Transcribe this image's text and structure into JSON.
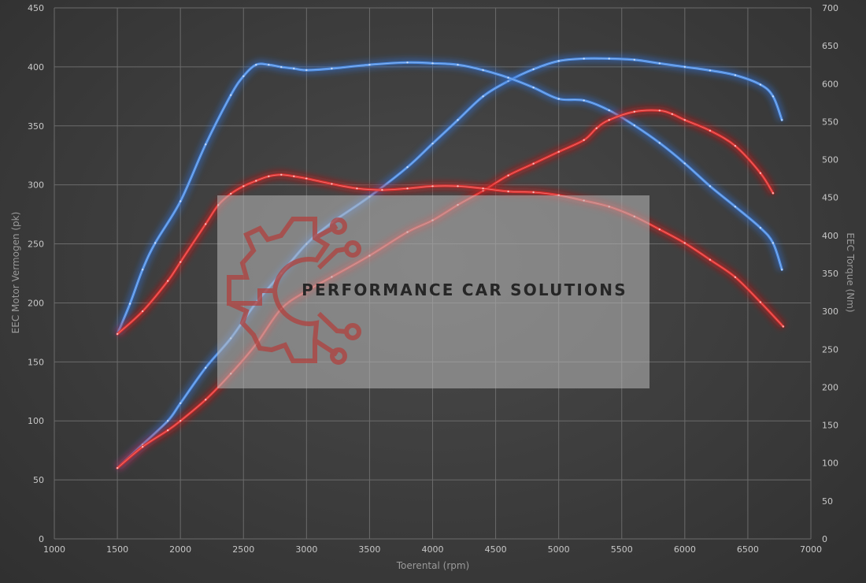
{
  "watermark": {
    "brand_text": "PERFORMANCE CAR SOLUTIONS",
    "logo_icon": "gear-circuit-icon",
    "logo_color": "#b0413e"
  },
  "chart_data": {
    "type": "line",
    "xlabel": "Toerental (rpm)",
    "ylabel_left": "EEC Motor Vermogen (pk)",
    "ylabel_right": "EEC Torque (Nm)",
    "xlim": [
      1000,
      7000
    ],
    "ylim_left": [
      0,
      450
    ],
    "ylim_right": [
      0,
      700
    ],
    "x_ticks": [
      1000,
      1500,
      2000,
      2500,
      3000,
      3500,
      4000,
      4500,
      5000,
      5500,
      6000,
      6500,
      7000
    ],
    "y_ticks_left": [
      0,
      50,
      100,
      150,
      200,
      250,
      300,
      350,
      400,
      450
    ],
    "y_ticks_right": [
      0,
      50,
      100,
      150,
      200,
      250,
      300,
      350,
      400,
      450,
      500,
      550,
      600,
      650,
      700
    ],
    "grid": true,
    "colors": {
      "blue": "#4f8fe6",
      "red": "#e0302e",
      "blue_glow": "#2f6fd0",
      "red_glow": "#d01818"
    },
    "series": [
      {
        "color": "blue",
        "axis": "left",
        "kind": "power",
        "x": [
          1500,
          1700,
          1900,
          2000,
          2200,
          2400,
          2600,
          2800,
          3000,
          3200,
          3500,
          3800,
          4000,
          4200,
          4400,
          4600,
          4800,
          5000,
          5200,
          5400,
          5600,
          5800,
          6000,
          6200,
          6400,
          6600,
          6700,
          6770
        ],
        "y": [
          60,
          80,
          100,
          115,
          145,
          170,
          200,
          225,
          250,
          268,
          290,
          315,
          335,
          355,
          375,
          388,
          398,
          405,
          407,
          407,
          406,
          403,
          400,
          397,
          393,
          385,
          375,
          355
        ]
      },
      {
        "color": "blue",
        "axis": "right",
        "kind": "torque",
        "x": [
          1500,
          1600,
          1700,
          1800,
          2000,
          2200,
          2400,
          2500,
          2600,
          2700,
          2800,
          2900,
          3000,
          3200,
          3500,
          3800,
          4000,
          4200,
          4400,
          4600,
          4800,
          5000,
          5200,
          5400,
          5600,
          5800,
          6000,
          6200,
          6400,
          6600,
          6700,
          6770
        ],
        "y": [
          270,
          310,
          355,
          390,
          445,
          520,
          585,
          610,
          625,
          625,
          622,
          620,
          618,
          620,
          625,
          628,
          627,
          625,
          618,
          608,
          595,
          580,
          578,
          565,
          545,
          522,
          495,
          465,
          438,
          410,
          390,
          355
        ]
      },
      {
        "color": "red",
        "axis": "left",
        "kind": "power",
        "x": [
          1500,
          1700,
          1900,
          2000,
          2200,
          2400,
          2600,
          2800,
          3000,
          3200,
          3500,
          3800,
          4000,
          4200,
          4400,
          4600,
          4800,
          5000,
          5200,
          5300,
          5400,
          5600,
          5800,
          5900,
          6000,
          6200,
          6400,
          6600,
          6700
        ],
        "y": [
          60,
          78,
          92,
          100,
          118,
          140,
          165,
          195,
          210,
          222,
          240,
          260,
          270,
          283,
          295,
          308,
          318,
          328,
          338,
          348,
          355,
          362,
          363,
          360,
          355,
          346,
          333,
          310,
          293
        ]
      },
      {
        "color": "red",
        "axis": "right",
        "kind": "torque",
        "x": [
          1500,
          1700,
          1900,
          2000,
          2200,
          2300,
          2400,
          2500,
          2600,
          2700,
          2800,
          2900,
          3000,
          3200,
          3400,
          3600,
          3800,
          4000,
          4200,
          4400,
          4600,
          4800,
          5000,
          5200,
          5400,
          5600,
          5800,
          6000,
          6200,
          6400,
          6600,
          6780
        ],
        "y": [
          270,
          300,
          340,
          365,
          415,
          440,
          455,
          465,
          472,
          478,
          480,
          478,
          475,
          468,
          462,
          460,
          462,
          465,
          465,
          462,
          458,
          457,
          453,
          446,
          438,
          425,
          408,
          390,
          368,
          345,
          312,
          280
        ]
      }
    ]
  }
}
